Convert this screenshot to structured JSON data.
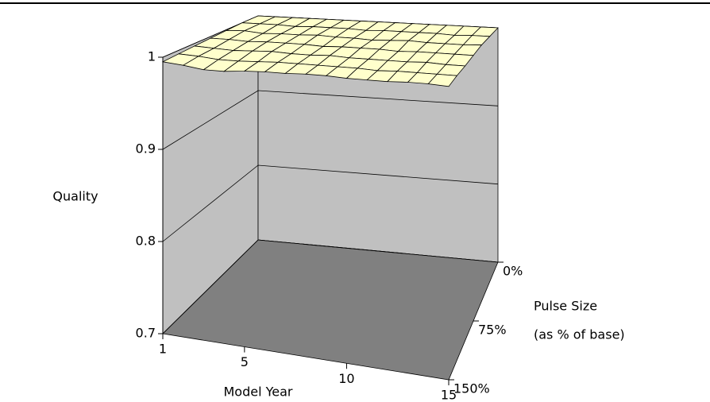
{
  "chart_data": {
    "type": "surface",
    "y_label": "Quality",
    "x_label": "Model Year",
    "depth_label": [
      "Pulse Size",
      "(as % of base)"
    ],
    "x": [
      1,
      2,
      3,
      4,
      5,
      6,
      7,
      8,
      9,
      10,
      11,
      12,
      13,
      14,
      15
    ],
    "depth": [
      0,
      25,
      50,
      75,
      100,
      125,
      150
    ],
    "values": [
      [
        1,
        1,
        1,
        1,
        1,
        1,
        1,
        1,
        1,
        1,
        1,
        1,
        1,
        1,
        1
      ],
      [
        1,
        1,
        1,
        0.999,
        1,
        1,
        1,
        0.999,
        1,
        1,
        1,
        1,
        0.999,
        1,
        1
      ],
      [
        0.999,
        1,
        0.998,
        0.999,
        0.999,
        1,
        0.999,
        0.999,
        0.998,
        0.999,
        1,
        0.999,
        0.999,
        0.999,
        1
      ],
      [
        0.998,
        0.998,
        0.997,
        0.998,
        0.998,
        0.998,
        0.997,
        0.998,
        0.998,
        0.998,
        0.997,
        0.998,
        0.998,
        0.998,
        0.998
      ],
      [
        0.997,
        0.996,
        0.995,
        0.996,
        0.997,
        0.996,
        0.996,
        0.997,
        0.996,
        0.996,
        0.996,
        0.996,
        0.997,
        0.996,
        0.996
      ],
      [
        0.996,
        0.995,
        0.993,
        0.993,
        0.994,
        0.995,
        0.995,
        0.995,
        0.995,
        0.995,
        0.994,
        0.995,
        0.995,
        0.995,
        0.995
      ],
      [
        0.995,
        0.993,
        0.99,
        0.99,
        0.992,
        0.993,
        0.993,
        0.994,
        0.994,
        0.993,
        0.993,
        0.993,
        0.994,
        0.994,
        0.993
      ]
    ],
    "surface_color": "#ffffcc",
    "wall_color": "#c0c0c0",
    "floor_color": "#808080",
    "ylim": [
      0.7,
      1
    ],
    "yticks": [
      0.7,
      0.8,
      0.9,
      1
    ],
    "xlim": [
      1,
      15
    ],
    "xticks": [
      1,
      5,
      10,
      15
    ],
    "depthlim": [
      0,
      150
    ],
    "depthticks": [
      {
        "value": 0,
        "label": "0%"
      },
      {
        "value": 75,
        "label": "75%"
      },
      {
        "value": 150,
        "label": "150%"
      }
    ],
    "grid": true
  }
}
